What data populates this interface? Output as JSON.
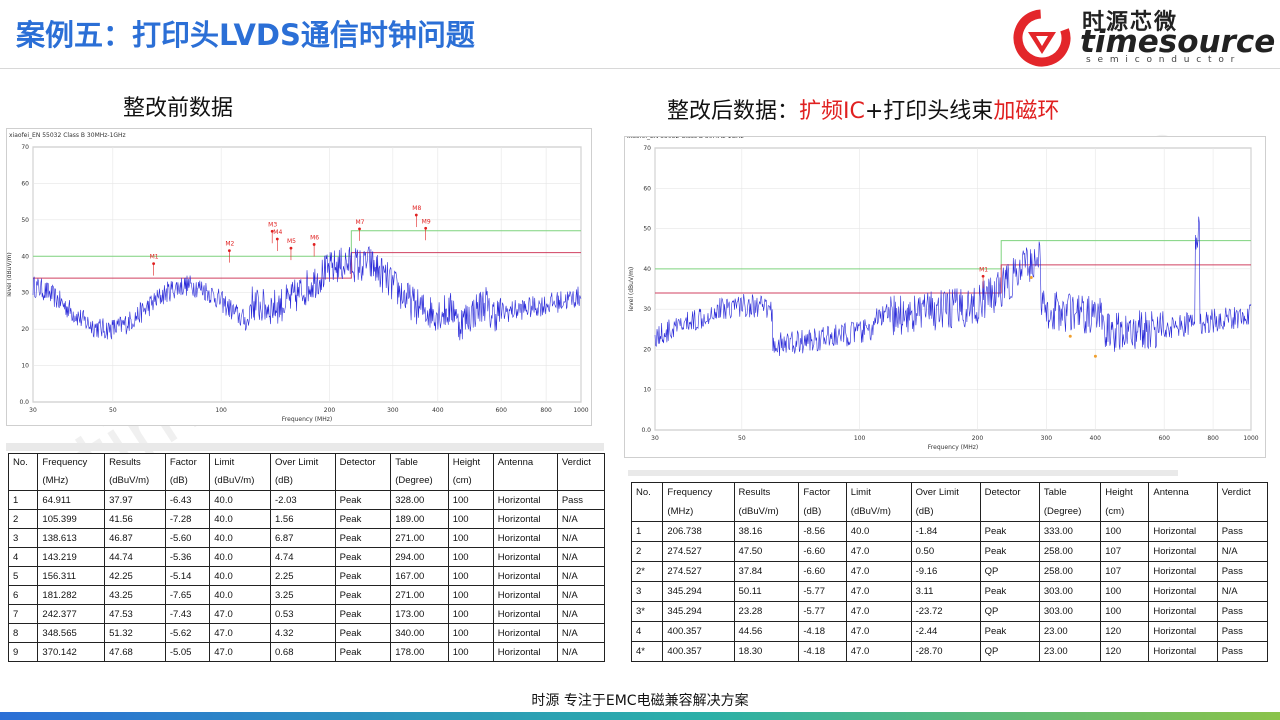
{
  "slide": {
    "title": "案例五：打印头LVDS通信时钟问题",
    "logo": {
      "cn": "时源芯微",
      "en": "timesource",
      "sub": "semiconductor"
    },
    "watermark": "timesource",
    "footer": "时源 专注于EMC电磁兼容解决方案"
  },
  "left": {
    "heading": "整改前数据",
    "chart_caption": "xiaofei_EN 55032 Class B 30MHz-1GHz",
    "table": {
      "headers": [
        [
          "No.",
          ""
        ],
        [
          "Frequency",
          "(MHz)"
        ],
        [
          "Results",
          "(dBuV/m)"
        ],
        [
          "Factor",
          "(dB)"
        ],
        [
          "Limit",
          "(dBuV/m)"
        ],
        [
          "Over Limit",
          "(dB)"
        ],
        [
          "Detector",
          ""
        ],
        [
          "Table",
          "(Degree)"
        ],
        [
          "Height",
          "(cm)"
        ],
        [
          "Antenna",
          ""
        ],
        [
          "Verdict",
          ""
        ]
      ],
      "rows": [
        [
          "1",
          "64.911",
          "37.97",
          "-6.43",
          "40.0",
          "-2.03",
          "Peak",
          "328.00",
          "100",
          "Horizontal",
          "Pass"
        ],
        [
          "2",
          "105.399",
          "41.56",
          "-7.28",
          "40.0",
          "1.56",
          "Peak",
          "189.00",
          "100",
          "Horizontal",
          "N/A"
        ],
        [
          "3",
          "138.613",
          "46.87",
          "-5.60",
          "40.0",
          "6.87",
          "Peak",
          "271.00",
          "100",
          "Horizontal",
          "N/A"
        ],
        [
          "4",
          "143.219",
          "44.74",
          "-5.36",
          "40.0",
          "4.74",
          "Peak",
          "294.00",
          "100",
          "Horizontal",
          "N/A"
        ],
        [
          "5",
          "156.311",
          "42.25",
          "-5.14",
          "40.0",
          "2.25",
          "Peak",
          "167.00",
          "100",
          "Horizontal",
          "N/A"
        ],
        [
          "6",
          "181.282",
          "43.25",
          "-7.65",
          "40.0",
          "3.25",
          "Peak",
          "271.00",
          "100",
          "Horizontal",
          "N/A"
        ],
        [
          "7",
          "242.377",
          "47.53",
          "-7.43",
          "47.0",
          "0.53",
          "Peak",
          "173.00",
          "100",
          "Horizontal",
          "N/A"
        ],
        [
          "8",
          "348.565",
          "51.32",
          "-5.62",
          "47.0",
          "4.32",
          "Peak",
          "340.00",
          "100",
          "Horizontal",
          "N/A"
        ],
        [
          "9",
          "370.142",
          "47.68",
          "-5.05",
          "47.0",
          "0.68",
          "Peak",
          "178.00",
          "100",
          "Horizontal",
          "N/A"
        ]
      ]
    }
  },
  "right": {
    "heading_parts": [
      {
        "text": "整改后数据：",
        "color": "#111111"
      },
      {
        "text": "扩频IC",
        "color": "#e02020"
      },
      {
        "text": "+打印头线束",
        "color": "#111111"
      },
      {
        "text": "加磁环",
        "color": "#e02020"
      }
    ],
    "chart_caption": "xiaofei_EN 55032 Class B 30MHz-1GHz",
    "table": {
      "headers": [
        [
          "No.",
          ""
        ],
        [
          "Frequency",
          "(MHz)"
        ],
        [
          "Results",
          "(dBuV/m)"
        ],
        [
          "Factor",
          "(dB)"
        ],
        [
          "Limit",
          "(dBuV/m)"
        ],
        [
          "Over Limit",
          "(dB)"
        ],
        [
          "Detector",
          ""
        ],
        [
          "Table",
          "(Degree)"
        ],
        [
          "Height",
          "(cm)"
        ],
        [
          "Antenna",
          ""
        ],
        [
          "Verdict",
          ""
        ]
      ],
      "rows": [
        [
          "1",
          "206.738",
          "38.16",
          "-8.56",
          "40.0",
          "-1.84",
          "Peak",
          "333.00",
          "100",
          "Horizontal",
          "Pass"
        ],
        [
          "2",
          "274.527",
          "47.50",
          "-6.60",
          "47.0",
          "0.50",
          "Peak",
          "258.00",
          "107",
          "Horizontal",
          "N/A"
        ],
        [
          "2*",
          "274.527",
          "37.84",
          "-6.60",
          "47.0",
          "-9.16",
          "QP",
          "258.00",
          "107",
          "Horizontal",
          "Pass"
        ],
        [
          "3",
          "345.294",
          "50.11",
          "-5.77",
          "47.0",
          "3.11",
          "Peak",
          "303.00",
          "100",
          "Horizontal",
          "N/A"
        ],
        [
          "3*",
          "345.294",
          "23.28",
          "-5.77",
          "47.0",
          "-23.72",
          "QP",
          "303.00",
          "100",
          "Horizontal",
          "Pass"
        ],
        [
          "4",
          "400.357",
          "44.56",
          "-4.18",
          "47.0",
          "-2.44",
          "Peak",
          "23.00",
          "120",
          "Horizontal",
          "Pass"
        ],
        [
          "4*",
          "400.357",
          "18.30",
          "-4.18",
          "47.0",
          "-28.70",
          "QP",
          "23.00",
          "120",
          "Horizontal",
          "Pass"
        ]
      ]
    }
  },
  "chart_data": [
    {
      "type": "line",
      "ylabel": "level (dBuV/m)",
      "xlabel": "Frequency (MHz)",
      "x_scale": "log",
      "xlim": [
        30,
        1000
      ],
      "ylim": [
        0,
        70
      ],
      "x_ticks": [
        "30",
        "50",
        "100",
        "200",
        "300",
        "400",
        "600",
        "800",
        "1000"
      ],
      "y_ticks": [
        "0.0",
        "10",
        "20",
        "30",
        "40",
        "50",
        "60",
        "70"
      ],
      "limits": [
        {
          "name": "limit-green",
          "segments": [
            [
              30,
              230,
              40
            ],
            [
              230,
              1000,
              47
            ]
          ],
          "color": "#7fd37f"
        },
        {
          "name": "limit-red",
          "segments": [
            [
              30,
              230,
              34
            ],
            [
              230,
              1000,
              41
            ]
          ],
          "color": "#d04060"
        }
      ],
      "markers": [
        {
          "label": "M1",
          "x": 64.911,
          "y": 37.97
        },
        {
          "label": "M2",
          "x": 105.399,
          "y": 41.56
        },
        {
          "label": "M3",
          "x": 138.613,
          "y": 46.87
        },
        {
          "label": "M4",
          "x": 143.219,
          "y": 44.74
        },
        {
          "label": "M5",
          "x": 156.311,
          "y": 42.25
        },
        {
          "label": "M6",
          "x": 181.282,
          "y": 43.25
        },
        {
          "label": "M7",
          "x": 242.377,
          "y": 47.53
        },
        {
          "label": "M8",
          "x": 348.565,
          "y": 51.32
        },
        {
          "label": "M9",
          "x": 370.142,
          "y": 47.68
        }
      ],
      "series_color": "#2a2ad8"
    },
    {
      "type": "line",
      "ylabel": "level (dBuV/m)",
      "xlabel": "Frequency (MHz)",
      "x_scale": "log",
      "xlim": [
        30,
        1000
      ],
      "ylim": [
        0,
        70
      ],
      "x_ticks": [
        "30",
        "50",
        "100",
        "200",
        "300",
        "400",
        "600",
        "800",
        "1000"
      ],
      "y_ticks": [
        "0.0",
        "10",
        "20",
        "30",
        "40",
        "50",
        "60",
        "70"
      ],
      "limits": [
        {
          "name": "limit-green",
          "segments": [
            [
              30,
              230,
              40
            ],
            [
              230,
              1000,
              47
            ]
          ],
          "color": "#7fd37f"
        },
        {
          "name": "limit-red",
          "segments": [
            [
              30,
              230,
              34
            ],
            [
              230,
              1000,
              41
            ]
          ],
          "color": "#d04060"
        }
      ],
      "markers": [
        {
          "label": "M1",
          "x": 206.738,
          "y": 38.16
        }
      ],
      "qp_points": [
        {
          "x": 274.527,
          "y": 37.84
        },
        {
          "x": 345.294,
          "y": 23.28
        },
        {
          "x": 400.357,
          "y": 18.3
        }
      ],
      "series_color": "#2a2ad8"
    }
  ]
}
